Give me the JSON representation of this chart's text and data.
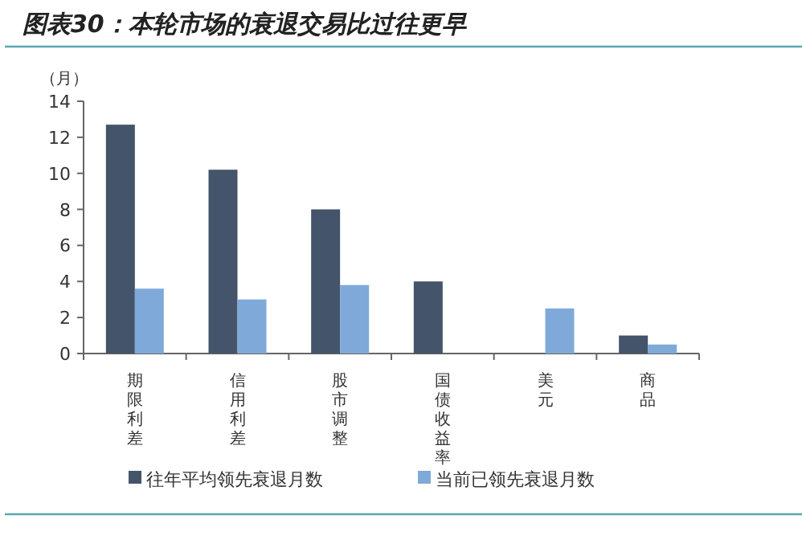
{
  "chart_data": {
    "type": "bar",
    "title": "图表30：本轮市场的衰退交易比过往更早",
    "ylabel": "（月）",
    "categories": [
      "期限利差",
      "信用利差",
      "股市调整",
      "国债收益率",
      "美元",
      "商品"
    ],
    "series": [
      {
        "name": "往年平均领先衰退月数",
        "color": "#44546a",
        "values": [
          12.7,
          10.2,
          8.0,
          4.0,
          null,
          1.0
        ]
      },
      {
        "name": "当前已领先衰退月数",
        "color": "#7fa9d8",
        "values": [
          3.6,
          3.0,
          3.8,
          null,
          2.5,
          0.5
        ]
      }
    ],
    "ylim": [
      0,
      14
    ],
    "yticks": [
      0,
      2,
      4,
      6,
      8,
      10,
      12,
      14
    ],
    "grid": false,
    "legend": "bottom"
  }
}
